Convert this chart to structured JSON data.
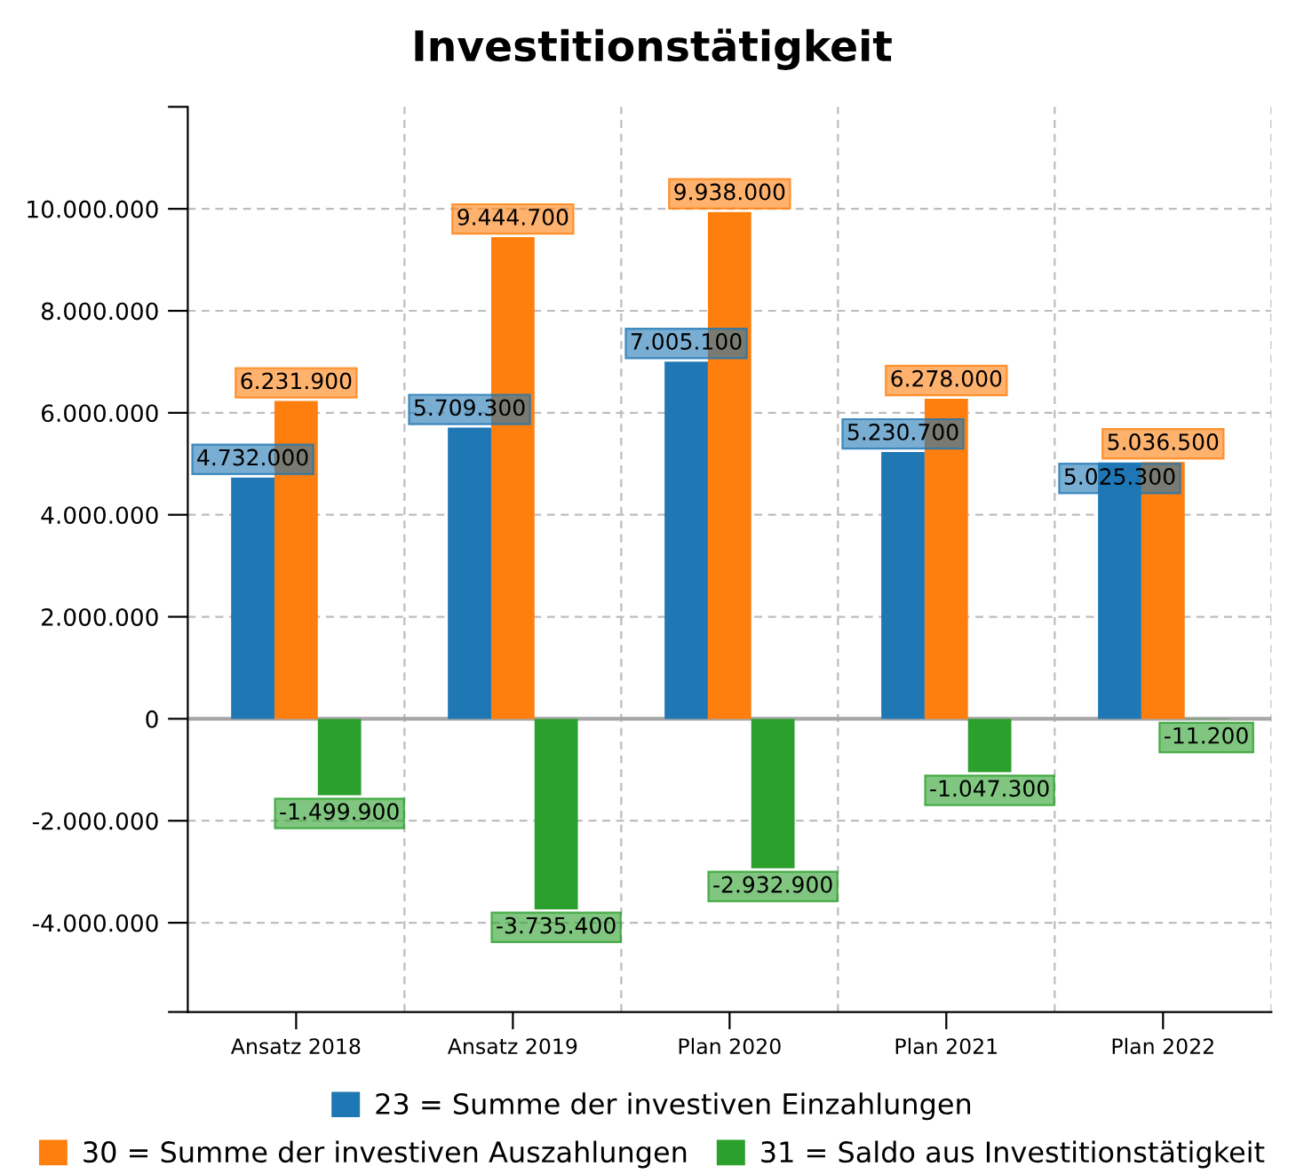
{
  "chart_data": {
    "type": "bar",
    "title": "Investitionstätigkeit",
    "categories": [
      "Ansatz 2018",
      "Ansatz 2019",
      "Plan 2020",
      "Plan 2021",
      "Plan 2022"
    ],
    "series": [
      {
        "name": "23 = Summe der investiven Einzahlungen",
        "color": "#1f77b4",
        "values": [
          4732000,
          5709300,
          7005100,
          5230700,
          5025300
        ],
        "value_labels": [
          "4.732.000",
          "5.709.300",
          "7.005.100",
          "5.230.700",
          "5.025.300"
        ]
      },
      {
        "name": "30 = Summe der investiven Auszahlungen",
        "color": "#ff7f0e",
        "values": [
          6231900,
          9444700,
          9938000,
          6278000,
          5036500
        ],
        "value_labels": [
          "6.231.900",
          "9.444.700",
          "9.938.000",
          "6.278.000",
          "5.036.500"
        ]
      },
      {
        "name": "31 = Saldo aus Investitionstätigkeit",
        "color": "#2ca02c",
        "values": [
          -1499900,
          -3735400,
          -2932900,
          -1047300,
          -11200
        ],
        "value_labels": [
          "-1.499.900",
          "-3.735.400",
          "-2.932.900",
          "-1.047.300",
          "-11.200"
        ]
      }
    ],
    "ylim": [
      -5750000,
      12000000
    ],
    "yticks": [
      {
        "value": -5750000,
        "label": null
      },
      {
        "value": -4000000,
        "label": "-4.000.000"
      },
      {
        "value": -2000000,
        "label": "-2.000.000"
      },
      {
        "value": 0,
        "label": "0"
      },
      {
        "value": 2000000,
        "label": "2.000.000"
      },
      {
        "value": 4000000,
        "label": "4.000.000"
      },
      {
        "value": 6000000,
        "label": "6.000.000"
      },
      {
        "value": 8000000,
        "label": "8.000.000"
      },
      {
        "value": 10000000,
        "label": "10.000.000"
      },
      {
        "value": 12000000,
        "label": null
      }
    ],
    "ref_lines": [
      {
        "axis": "y",
        "value": 0,
        "color": "#a6a6a6"
      }
    ],
    "grid": true,
    "legend": "bottom"
  }
}
